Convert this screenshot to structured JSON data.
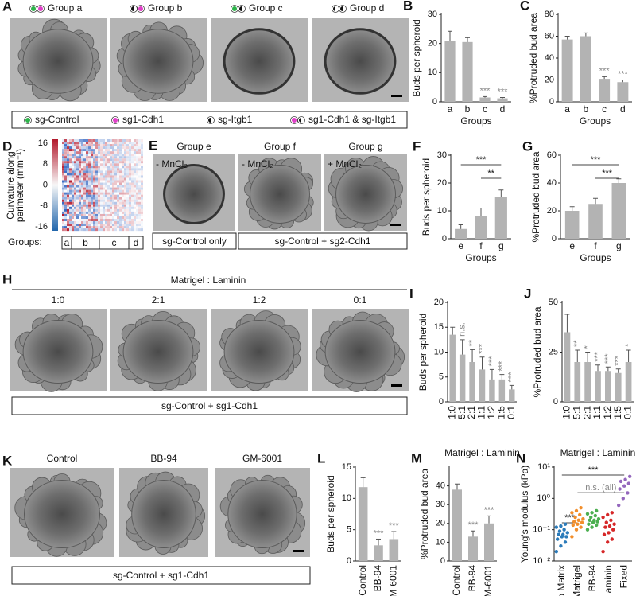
{
  "figure": {
    "A": {
      "letter": "A",
      "labels": [
        "Group a",
        "Group b",
        "Group c",
        "Group d"
      ],
      "legend": [
        "sg-Control",
        "sg1-Cdh1",
        "sg-Itgb1",
        "sg1-Cdh1 & sg-Itgb1"
      ]
    },
    "D": {
      "letter": "D",
      "ylabel": [
        "Curvature along",
        "perimeter (mm⁻¹)"
      ],
      "cticks": [
        16,
        8,
        0,
        -8,
        -16
      ],
      "groups_label": "Groups:",
      "groups": [
        "a",
        "b",
        "c",
        "d"
      ]
    },
    "E": {
      "letter": "E",
      "labels": [
        "Group e",
        "Group f",
        "Group g"
      ],
      "conditions": [
        "- MnCl₂",
        "- MnCl₂",
        "+ MnCl₂"
      ],
      "boxes": [
        "sg-Control only",
        "sg-Control + sg2-Cdh1"
      ]
    },
    "H": {
      "letter": "H",
      "title": "Matrigel : Laminin",
      "labels": [
        "1:0",
        "2:1",
        "1:2",
        "0:1"
      ],
      "box": "sg-Control + sg1-Cdh1"
    },
    "K": {
      "letter": "K",
      "labels": [
        "Control",
        "BB-94",
        "GM-6001"
      ],
      "box": "sg-Control + sg1-Cdh1"
    }
  },
  "chart_data": [
    {
      "type": "bar",
      "panel": "B",
      "ylabel": "Buds per spheroid",
      "xlabel": "Groups",
      "categories": [
        "a",
        "b",
        "c",
        "d"
      ],
      "values": [
        21,
        20.5,
        1.5,
        1.2
      ],
      "errors": [
        3.2,
        1.5,
        0.3,
        0.3
      ],
      "annotations": [
        null,
        null,
        "***",
        "***"
      ],
      "color": "#b3b3b3",
      "ylim": [
        0,
        30
      ],
      "yticks": [
        0,
        10,
        20,
        30
      ]
    },
    {
      "type": "bar",
      "panel": "C",
      "ylabel": "%Protruded bud area",
      "xlabel": "Groups",
      "categories": [
        "a",
        "b",
        "c",
        "d"
      ],
      "values": [
        57,
        60,
        21,
        18
      ],
      "errors": [
        3,
        3,
        2,
        2
      ],
      "annotations": [
        null,
        null,
        "***",
        "***"
      ],
      "color": "#b3b3b3",
      "ylim": [
        0,
        80
      ],
      "yticks": [
        0,
        20,
        40,
        60,
        80
      ]
    },
    {
      "type": "bar",
      "panel": "F",
      "ylabel": "Buds per spheroid",
      "xlabel": "Groups",
      "categories": [
        "e",
        "f",
        "g"
      ],
      "values": [
        3.5,
        8,
        15
      ],
      "errors": [
        1.5,
        3,
        2.5
      ],
      "brackets": [
        {
          "from": "e",
          "to": "g",
          "label": "***"
        },
        {
          "from": "f",
          "to": "g",
          "label": "**"
        }
      ],
      "color": "#b3b3b3",
      "ylim": [
        0,
        30
      ],
      "yticks": [
        0,
        10,
        20,
        30
      ]
    },
    {
      "type": "bar",
      "panel": "G",
      "ylabel": "%Protruded bud area",
      "xlabel": "Groups",
      "categories": [
        "e",
        "f",
        "g"
      ],
      "values": [
        20,
        25,
        40
      ],
      "errors": [
        3,
        4,
        3
      ],
      "brackets": [
        {
          "from": "e",
          "to": "g",
          "label": "***"
        },
        {
          "from": "f",
          "to": "g",
          "label": "***"
        }
      ],
      "color": "#b3b3b3",
      "ylim": [
        0,
        60
      ],
      "yticks": [
        0,
        20,
        40,
        60
      ]
    },
    {
      "type": "bar",
      "panel": "I",
      "ylabel": "Buds per spheroid",
      "xlabel": "Matrigel : Laminin",
      "categories": [
        "1:0",
        "5:1",
        "2:1",
        "1:1",
        "1:2",
        "1:5",
        "0:1"
      ],
      "values": [
        13.5,
        9.5,
        8,
        6.5,
        4.5,
        4.5,
        2.5
      ],
      "errors": [
        1.5,
        3,
        2.5,
        2.5,
        2,
        1,
        0.8
      ],
      "annotations": [
        null,
        "n.s.",
        "**",
        "***",
        "***",
        "***",
        "***"
      ],
      "rotate_labels": true,
      "color": "#b3b3b3",
      "ylim": [
        0,
        20
      ],
      "yticks": [
        0,
        5,
        10,
        15,
        20
      ]
    },
    {
      "type": "bar",
      "panel": "J",
      "ylabel": "%Protruded bud area",
      "xlabel": "Matrigel : Laminin",
      "categories": [
        "1:0",
        "5:1",
        "2:1",
        "1:1",
        "1:2",
        "1:5",
        "0:1"
      ],
      "values": [
        35,
        20,
        20,
        15.5,
        15.5,
        14.5,
        20
      ],
      "errors": [
        9,
        6,
        5,
        3,
        2,
        2,
        6
      ],
      "annotations": [
        null,
        "**",
        "*",
        "***",
        "***",
        "***",
        "*"
      ],
      "rotate_labels": true,
      "color": "#b3b3b3",
      "ylim": [
        0,
        50
      ],
      "yticks": [
        0,
        25,
        50
      ]
    },
    {
      "type": "bar",
      "panel": "L",
      "ylabel": "Buds per spheroid",
      "categories": [
        "Control",
        "BB-94",
        "GM-6001"
      ],
      "values": [
        11.8,
        2.5,
        3.5
      ],
      "errors": [
        1.5,
        1.0,
        1.2
      ],
      "annotations": [
        null,
        "***",
        "***"
      ],
      "rotate_labels": true,
      "color": "#b3b3b3",
      "ylim": [
        0,
        15
      ],
      "yticks": [
        0,
        5,
        10,
        15
      ]
    },
    {
      "type": "bar",
      "panel": "M",
      "ylabel": "%Protruded bud area",
      "categories": [
        "Control",
        "BB-94",
        "GM-6001"
      ],
      "values": [
        38,
        13,
        20
      ],
      "errors": [
        3,
        3,
        4
      ],
      "annotations": [
        null,
        "***",
        "***"
      ],
      "rotate_labels": true,
      "color": "#b3b3b3",
      "ylim": [
        0,
        50
      ],
      "yticks": [
        0,
        10,
        20,
        30,
        40
      ]
    },
    {
      "type": "strip",
      "panel": "N",
      "ylabel": "Young's modulus (kPa)",
      "log_scale": true,
      "rotate_labels": true,
      "series": [
        {
          "name": "No Matrix",
          "color": "#2b7bba",
          "values": [
            0.02,
            0.03,
            0.04,
            0.05,
            0.06,
            0.06,
            0.07,
            0.07,
            0.08,
            0.09,
            0.1,
            0.12,
            0.13,
            0.15
          ]
        },
        {
          "name": "Matrigel",
          "color": "#f28e2b",
          "values": [
            0.06,
            0.1,
            0.12,
            0.14,
            0.15,
            0.17,
            0.18,
            0.2,
            0.22,
            0.25,
            0.3,
            0.35,
            0.4,
            0.5
          ]
        },
        {
          "name": "BB-94",
          "color": "#4caf50",
          "values": [
            0.1,
            0.12,
            0.14,
            0.15,
            0.17,
            0.18,
            0.2,
            0.2,
            0.22,
            0.25,
            0.28,
            0.32,
            0.35,
            0.4
          ]
        },
        {
          "name": "Laminin",
          "color": "#d62728",
          "values": [
            0.02,
            0.04,
            0.05,
            0.07,
            0.08,
            0.1,
            0.12,
            0.13,
            0.15,
            0.17,
            0.2,
            0.25,
            0.3,
            0.35
          ]
        },
        {
          "name": "Fixed",
          "color": "#9467bd",
          "values": [
            0.6,
            1,
            1.5,
            2,
            2.5,
            3,
            3.5,
            4,
            5
          ]
        }
      ],
      "brackets": [
        {
          "from": "No Matrix",
          "to": "Fixed",
          "label": "***"
        },
        {
          "from": "Matrigel",
          "to": "Fixed",
          "label": "n.s. (all)"
        },
        {
          "from": "No Matrix",
          "to": "Matrigel",
          "label": "***"
        }
      ],
      "ylim": [
        0.01,
        10
      ],
      "yticks": [
        {
          "value": 0.01,
          "label": "10⁻²"
        },
        {
          "value": 0.1,
          "label": "10⁻¹"
        },
        {
          "value": 1,
          "label": "10⁰"
        },
        {
          "value": 10,
          "label": "10¹"
        }
      ]
    }
  ]
}
